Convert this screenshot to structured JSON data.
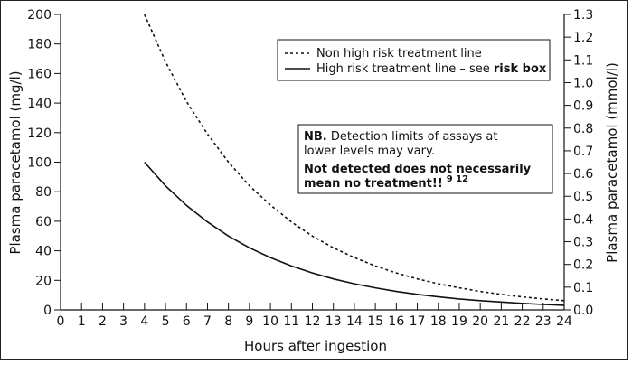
{
  "chart_data": {
    "type": "line",
    "xlabel": "Hours after ingestion",
    "ylabel": "Plasma paracetamol (mg/l)",
    "ylabel_right": "Plasma paracetamol (mmol/l)",
    "xlim": [
      0,
      24
    ],
    "ylim": [
      0,
      200
    ],
    "ylim_right": [
      0,
      1.3
    ],
    "x_ticks": [
      "0",
      "1",
      "2",
      "3",
      "4",
      "5",
      "6",
      "7",
      "8",
      "9",
      "10",
      "11",
      "12",
      "13",
      "14",
      "15",
      "16",
      "17",
      "18",
      "19",
      "20",
      "21",
      "22",
      "23",
      "24"
    ],
    "y_ticks": [
      "0",
      "20",
      "40",
      "60",
      "80",
      "100",
      "120",
      "140",
      "160",
      "180",
      "200"
    ],
    "y_ticks_right": [
      "0.0",
      "0.1",
      "0.2",
      "0.3",
      "0.4",
      "0.5",
      "0.6",
      "0.7",
      "0.8",
      "0.9",
      "1.0",
      "1.1",
      "1.2",
      "1.3"
    ],
    "grid": false,
    "legend_position": "top-right",
    "series": [
      {
        "name": "Non high risk treatment line",
        "style": "dashed",
        "x": [
          4,
          5,
          6,
          7,
          8,
          9,
          10,
          11,
          12,
          13,
          14,
          15,
          16,
          17,
          18,
          19,
          20,
          21,
          22,
          23,
          24
        ],
        "y": [
          200,
          168,
          141,
          119,
          100,
          84,
          71,
          59.5,
          50,
          42,
          35.4,
          29.7,
          25,
          21,
          17.7,
          14.9,
          12.5,
          10.5,
          8.8,
          7.4,
          6.25
        ]
      },
      {
        "name": "High risk treatment line – see",
        "name_bold": "risk box",
        "style": "solid",
        "x": [
          4,
          5,
          6,
          7,
          8,
          9,
          10,
          11,
          12,
          13,
          14,
          15,
          16,
          17,
          18,
          19,
          20,
          21,
          22,
          23,
          24
        ],
        "y": [
          100,
          84,
          70.7,
          59.5,
          50,
          42,
          35.4,
          29.7,
          25,
          21,
          17.7,
          14.9,
          12.5,
          10.5,
          8.8,
          7.4,
          6.25,
          5.3,
          4.4,
          3.7,
          3.1
        ]
      }
    ],
    "note": {
      "line1_bold": "NB.",
      "line1": " Detection limits of assays at",
      "line2": "lower levels may vary.",
      "line3": "Not detected does not necessarily",
      "line4": "mean no treatment!!",
      "superscript": "9 12"
    }
  }
}
